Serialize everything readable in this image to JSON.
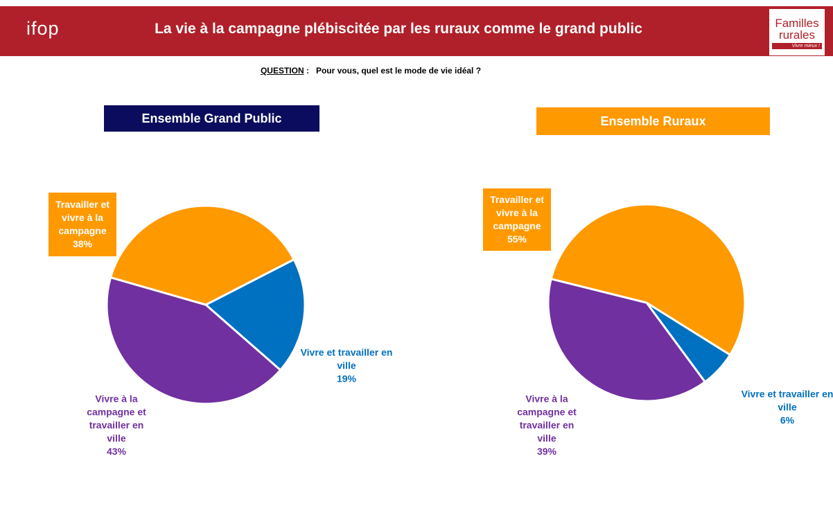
{
  "header": {
    "title": "La vie à la campagne plébiscitée par les ruraux comme le grand public",
    "logo_left": "ifop",
    "logo_right": {
      "line1": "Familles",
      "line2": "rurales",
      "tagline": "Vivre mieux !"
    }
  },
  "question": {
    "label": "QUESTION",
    "separator": ":",
    "text": "Pour vous, quel est le mode de vie idéal ?"
  },
  "chart_data": [
    {
      "type": "pie",
      "title": "Ensemble Grand Public",
      "categories": [
        "Travailler et vivre à la campagne",
        "Vivre et travailler en ville",
        "Vivre à la campagne et travailler en ville"
      ],
      "values": [
        38,
        19,
        43
      ],
      "value_labels": [
        "38%",
        "19%",
        "43%"
      ],
      "colors": [
        "#ff9900",
        "#0070c0",
        "#7030a0"
      ],
      "title_color": "#0c0c5e"
    },
    {
      "type": "pie",
      "title": "Ensemble Ruraux",
      "categories": [
        "Travailler et vivre à la campagne",
        "Vivre et travailler en ville",
        "Vivre à la campagne et travailler en ville"
      ],
      "values": [
        55,
        6,
        39
      ],
      "value_labels": [
        "55%",
        "6%",
        "39%"
      ],
      "colors": [
        "#ff9900",
        "#0070c0",
        "#7030a0"
      ],
      "title_color": "#ff9900"
    }
  ]
}
